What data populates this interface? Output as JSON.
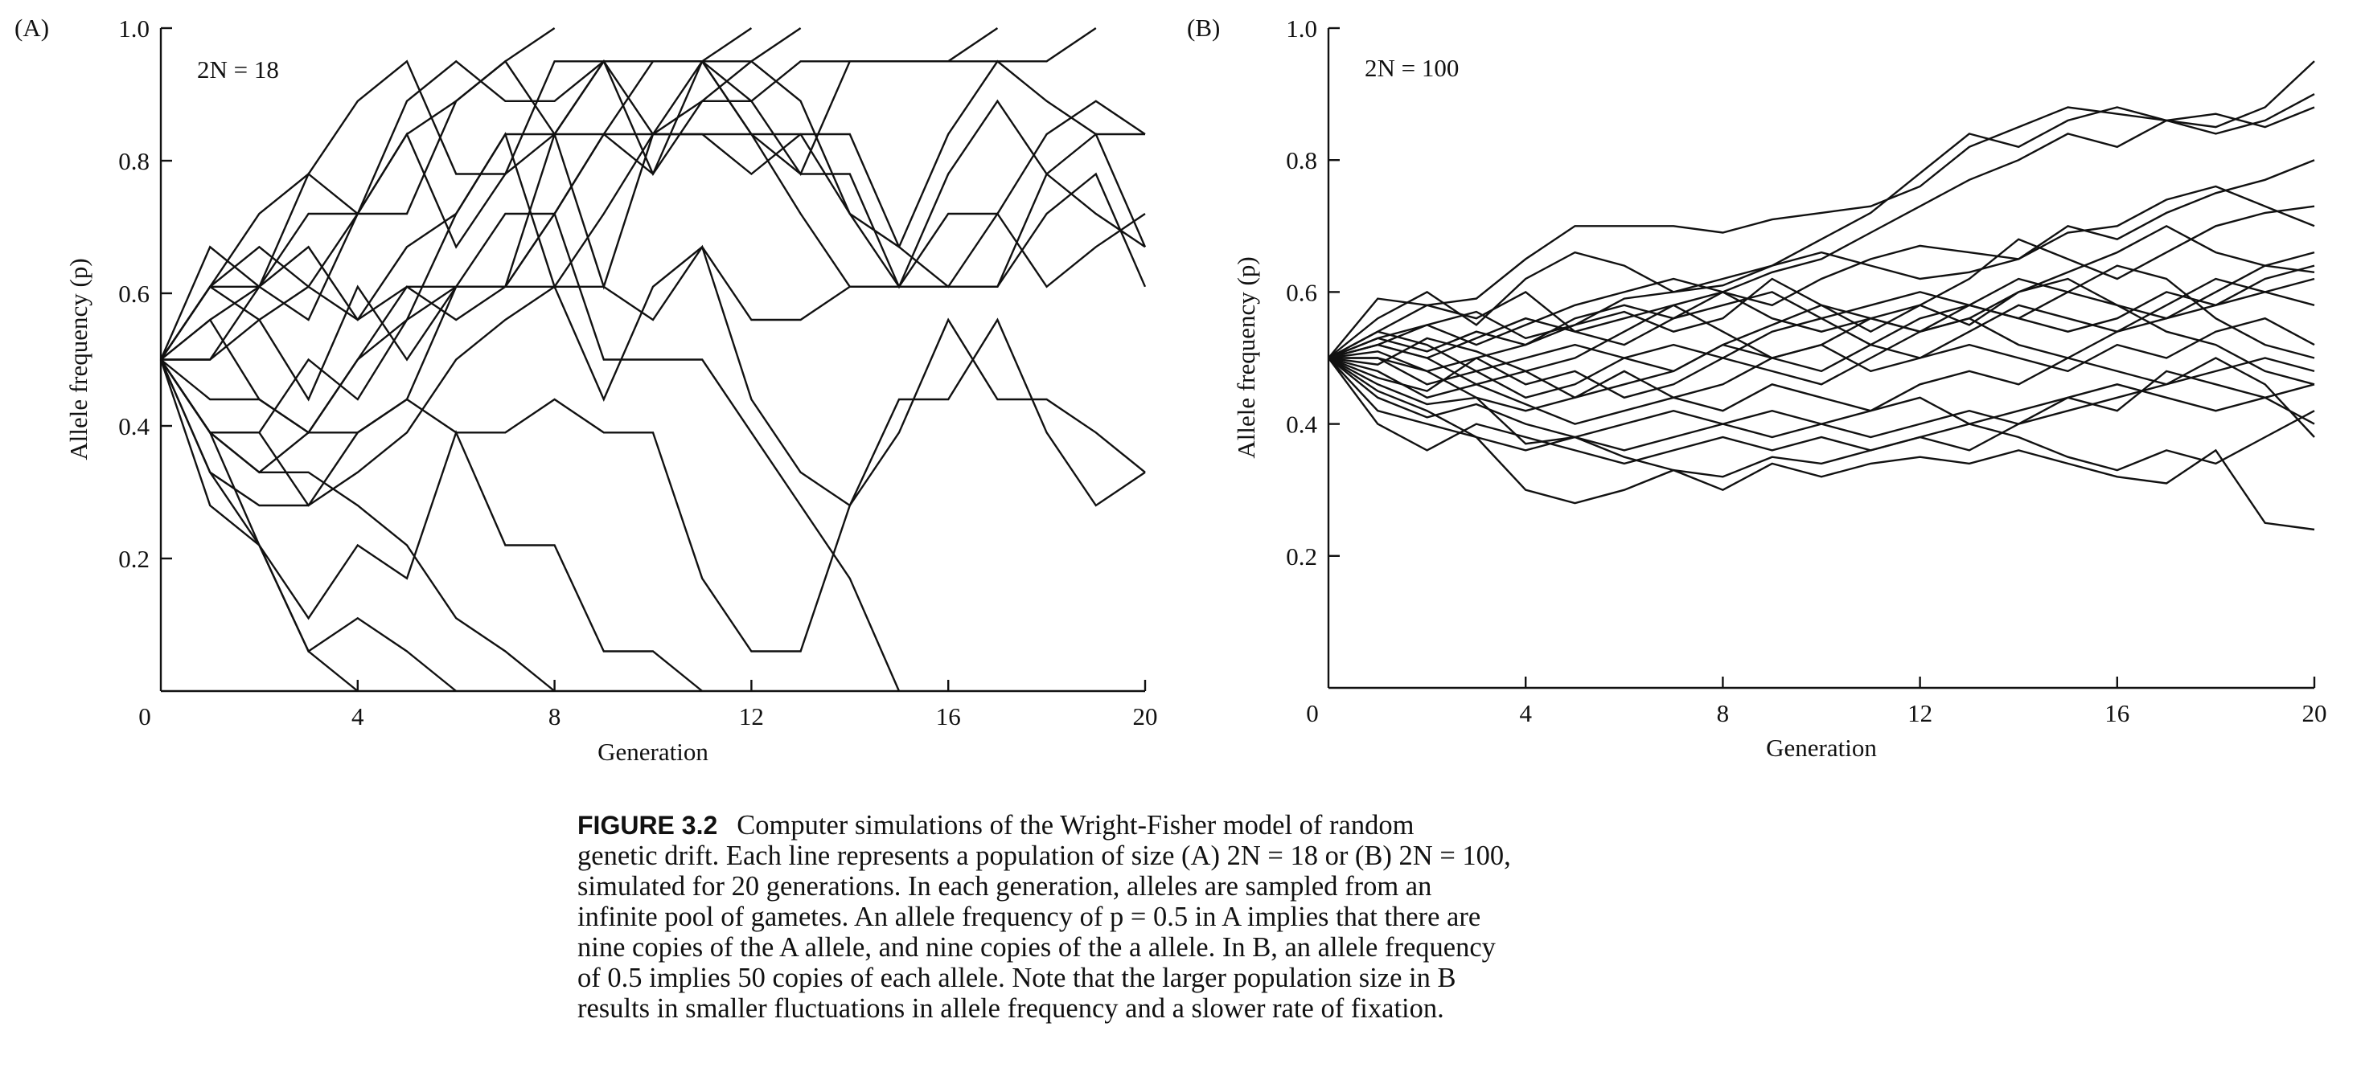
{
  "chart_data": [
    {
      "type": "line",
      "panel_label": "(A)",
      "annotation": "2N = 18",
      "xlabel": "Generation",
      "ylabel": "Allele frequency (p)",
      "xlim": [
        0,
        20
      ],
      "ylim": [
        0,
        1.0
      ],
      "x_ticks": [
        0,
        4,
        8,
        12,
        16,
        20
      ],
      "y_ticks": [
        0.2,
        0.4,
        0.6,
        0.8,
        1.0
      ],
      "x_tick_labels": [
        "0",
        "4",
        "8",
        "12",
        "16",
        "20"
      ],
      "y_tick_labels": [
        "0.2",
        "0.4",
        "0.6",
        "0.8",
        "1.0"
      ],
      "series": [
        {
          "values": [
            0.5,
            0.61,
            0.72,
            0.78,
            0.89,
            0.95,
            0.78,
            0.78,
            0.95,
            0.95,
            0.95,
            0.95,
            0.89,
            0.78,
            0.95,
            0.95,
            0.95,
            0.95,
            0.95,
            1.0
          ]
        },
        {
          "values": [
            0.5,
            0.67,
            0.61,
            0.78,
            0.72,
            0.89,
            0.95,
            0.89,
            0.89,
            0.95,
            0.84,
            0.84,
            0.84,
            0.84,
            0.72,
            0.67,
            0.84,
            0.95,
            0.89,
            0.84,
            0.84
          ]
        },
        {
          "values": [
            0.5,
            0.61,
            0.67,
            0.61,
            0.72,
            0.72,
            0.89,
            0.95,
            0.84,
            0.95,
            0.95,
            0.95,
            0.84,
            0.78,
            0.78,
            0.61,
            0.72,
            0.72,
            0.84,
            0.89,
            0.84
          ]
        },
        {
          "values": [
            0.5,
            0.56,
            0.61,
            0.72,
            0.72,
            0.84,
            0.89,
            0.95,
            1.0
          ]
        },
        {
          "values": [
            0.5,
            0.61,
            0.61,
            0.56,
            0.72,
            0.84,
            0.67,
            0.78,
            0.84,
            0.61,
            0.84,
            0.84,
            0.78,
            0.84,
            0.84,
            0.67,
            0.61,
            0.72,
            0.61,
            0.67,
            0.72
          ]
        },
        {
          "values": [
            0.5,
            0.5,
            0.56,
            0.61,
            0.56,
            0.67,
            0.72,
            0.84,
            0.84,
            0.95,
            0.78,
            0.89,
            0.95,
            0.89,
            0.72,
            0.61,
            0.78,
            0.89,
            0.78,
            0.84,
            0.67
          ]
        },
        {
          "values": [
            0.5,
            0.5,
            0.61,
            0.67,
            0.56,
            0.61,
            0.61,
            0.72,
            0.72,
            0.84,
            0.78,
            0.95,
            1.0
          ]
        },
        {
          "values": [
            0.5,
            0.56,
            0.44,
            0.39,
            0.5,
            0.56,
            0.72,
            0.84,
            0.61,
            0.72,
            0.84,
            0.95,
            0.95,
            1.0
          ]
        },
        {
          "values": [
            0.5,
            0.61,
            0.56,
            0.44,
            0.61,
            0.5,
            0.61,
            0.61,
            0.72,
            0.84,
            0.95,
            0.95,
            0.84,
            0.72,
            0.61,
            0.61,
            0.61,
            0.61,
            0.78,
            0.72,
            0.67
          ]
        },
        {
          "values": [
            0.5,
            0.44,
            0.44,
            0.39,
            0.39,
            0.44,
            0.61,
            0.61,
            0.84,
            0.84,
            0.84,
            0.89,
            0.89,
            0.95,
            0.95,
            0.95,
            0.95,
            1.0
          ]
        },
        {
          "values": [
            0.5,
            0.39,
            0.33,
            0.39,
            0.5,
            0.61,
            0.56,
            0.61,
            0.61,
            0.61,
            0.56,
            0.67,
            0.44,
            0.33,
            0.28,
            0.39,
            0.56,
            0.44,
            0.44,
            0.39,
            0.33
          ]
        },
        {
          "values": [
            0.5,
            0.39,
            0.39,
            0.5,
            0.44,
            0.56,
            0.61,
            0.61,
            0.72,
            0.5,
            0.5,
            0.5,
            0.39,
            0.28,
            0.17,
            0.0
          ]
        },
        {
          "values": [
            0.5,
            0.39,
            0.39,
            0.28,
            0.33,
            0.39,
            0.5,
            0.56,
            0.61,
            0.44,
            0.61,
            0.67,
            0.56,
            0.56,
            0.61,
            0.61,
            0.61,
            0.61,
            0.72,
            0.78,
            0.61
          ]
        },
        {
          "values": [
            0.5,
            0.33,
            0.28,
            0.28,
            0.39,
            0.44,
            0.39,
            0.39,
            0.44,
            0.39,
            0.39,
            0.17,
            0.06,
            0.06,
            0.28,
            0.44,
            0.44,
            0.56,
            0.39,
            0.28,
            0.33
          ]
        },
        {
          "values": [
            0.5,
            0.33,
            0.22,
            0.11,
            0.22,
            0.17,
            0.39,
            0.22,
            0.22,
            0.06,
            0.06,
            0.0
          ]
        },
        {
          "values": [
            0.5,
            0.28,
            0.22,
            0.06,
            0.0
          ]
        },
        {
          "values": [
            0.5,
            0.39,
            0.22,
            0.06,
            0.11,
            0.06,
            0.0
          ]
        },
        {
          "values": [
            0.5,
            0.39,
            0.33,
            0.33,
            0.28,
            0.22,
            0.11,
            0.06,
            0.0
          ]
        }
      ]
    },
    {
      "type": "line",
      "panel_label": "(B)",
      "annotation": "2N = 100",
      "xlabel": "Generation",
      "ylabel": "Allele frequency (p)",
      "xlim": [
        0,
        20
      ],
      "ylim": [
        0,
        1.0
      ],
      "x_ticks": [
        0,
        4,
        8,
        12,
        16,
        20
      ],
      "y_ticks": [
        0.2,
        0.4,
        0.6,
        0.8,
        1.0
      ],
      "x_tick_labels": [
        "0",
        "4",
        "8",
        "12",
        "16",
        "20"
      ],
      "y_tick_labels": [
        "0.2",
        "0.4",
        "0.6",
        "0.8",
        "1.0"
      ],
      "series": [
        {
          "values": [
            0.5,
            0.59,
            0.58,
            0.59,
            0.65,
            0.7,
            0.7,
            0.7,
            0.69,
            0.71,
            0.72,
            0.73,
            0.76,
            0.82,
            0.85,
            0.88,
            0.87,
            0.86,
            0.85,
            0.88,
            0.95
          ]
        },
        {
          "values": [
            0.5,
            0.56,
            0.6,
            0.55,
            0.62,
            0.66,
            0.64,
            0.6,
            0.62,
            0.64,
            0.68,
            0.72,
            0.78,
            0.84,
            0.82,
            0.86,
            0.88,
            0.86,
            0.84,
            0.86,
            0.9
          ]
        },
        {
          "values": [
            0.5,
            0.54,
            0.58,
            0.56,
            0.6,
            0.54,
            0.56,
            0.58,
            0.6,
            0.63,
            0.65,
            0.69,
            0.73,
            0.77,
            0.8,
            0.84,
            0.82,
            0.86,
            0.87,
            0.85,
            0.88
          ]
        },
        {
          "values": [
            0.5,
            0.53,
            0.55,
            0.57,
            0.53,
            0.55,
            0.59,
            0.6,
            0.61,
            0.64,
            0.66,
            0.64,
            0.62,
            0.63,
            0.65,
            0.7,
            0.68,
            0.72,
            0.75,
            0.77,
            0.8
          ]
        },
        {
          "values": [
            0.5,
            0.52,
            0.5,
            0.53,
            0.56,
            0.54,
            0.52,
            0.56,
            0.6,
            0.58,
            0.62,
            0.65,
            0.67,
            0.66,
            0.65,
            0.69,
            0.7,
            0.74,
            0.76,
            0.73,
            0.7
          ]
        },
        {
          "values": [
            0.5,
            0.51,
            0.48,
            0.5,
            0.52,
            0.55,
            0.57,
            0.54,
            0.56,
            0.62,
            0.58,
            0.54,
            0.58,
            0.62,
            0.68,
            0.65,
            0.62,
            0.66,
            0.7,
            0.72,
            0.73
          ]
        },
        {
          "values": [
            0.5,
            0.49,
            0.53,
            0.51,
            0.48,
            0.5,
            0.54,
            0.58,
            0.54,
            0.5,
            0.52,
            0.56,
            0.58,
            0.55,
            0.6,
            0.63,
            0.66,
            0.7,
            0.66,
            0.64,
            0.66
          ]
        },
        {
          "values": [
            0.5,
            0.54,
            0.52,
            0.48,
            0.5,
            0.52,
            0.5,
            0.48,
            0.52,
            0.55,
            0.58,
            0.56,
            0.54,
            0.56,
            0.6,
            0.62,
            0.58,
            0.56,
            0.6,
            0.64,
            0.63
          ]
        },
        {
          "values": [
            0.5,
            0.5,
            0.46,
            0.48,
            0.44,
            0.46,
            0.5,
            0.52,
            0.5,
            0.54,
            0.56,
            0.52,
            0.5,
            0.54,
            0.58,
            0.56,
            0.54,
            0.58,
            0.62,
            0.6,
            0.62
          ]
        },
        {
          "values": [
            0.5,
            0.48,
            0.44,
            0.46,
            0.48,
            0.44,
            0.46,
            0.48,
            0.52,
            0.5,
            0.48,
            0.52,
            0.56,
            0.58,
            0.56,
            0.54,
            0.56,
            0.6,
            0.58,
            0.62,
            0.64
          ]
        },
        {
          "values": [
            0.5,
            0.47,
            0.45,
            0.5,
            0.46,
            0.48,
            0.44,
            0.46,
            0.5,
            0.48,
            0.46,
            0.5,
            0.54,
            0.56,
            0.52,
            0.5,
            0.54,
            0.56,
            0.58,
            0.6,
            0.58
          ]
        },
        {
          "values": [
            0.5,
            0.46,
            0.43,
            0.44,
            0.42,
            0.44,
            0.48,
            0.44,
            0.46,
            0.5,
            0.52,
            0.48,
            0.5,
            0.52,
            0.5,
            0.48,
            0.52,
            0.5,
            0.54,
            0.56,
            0.52
          ]
        },
        {
          "values": [
            0.5,
            0.52,
            0.5,
            0.46,
            0.43,
            0.4,
            0.42,
            0.44,
            0.42,
            0.46,
            0.44,
            0.42,
            0.46,
            0.48,
            0.46,
            0.5,
            0.48,
            0.46,
            0.48,
            0.5,
            0.48
          ]
        },
        {
          "values": [
            0.5,
            0.44,
            0.41,
            0.43,
            0.4,
            0.38,
            0.4,
            0.42,
            0.4,
            0.38,
            0.4,
            0.42,
            0.44,
            0.4,
            0.42,
            0.44,
            0.46,
            0.44,
            0.42,
            0.44,
            0.46
          ]
        },
        {
          "values": [
            0.5,
            0.42,
            0.4,
            0.38,
            0.36,
            0.38,
            0.36,
            0.38,
            0.4,
            0.42,
            0.4,
            0.38,
            0.4,
            0.42,
            0.4,
            0.44,
            0.42,
            0.48,
            0.46,
            0.44,
            0.4
          ]
        },
        {
          "values": [
            0.5,
            0.4,
            0.36,
            0.4,
            0.38,
            0.36,
            0.34,
            0.36,
            0.38,
            0.36,
            0.38,
            0.36,
            0.38,
            0.36,
            0.4,
            0.42,
            0.44,
            0.46,
            0.5,
            0.46,
            0.38
          ]
        },
        {
          "values": [
            0.5,
            0.45,
            0.42,
            0.38,
            0.3,
            0.28,
            0.3,
            0.33,
            0.3,
            0.34,
            0.32,
            0.34,
            0.35,
            0.34,
            0.36,
            0.34,
            0.32,
            0.31,
            0.36,
            0.25,
            0.24
          ]
        },
        {
          "values": [
            0.5,
            0.5,
            0.48,
            0.44,
            0.37,
            0.38,
            0.35,
            0.33,
            0.32,
            0.35,
            0.34,
            0.36,
            0.38,
            0.4,
            0.38,
            0.35,
            0.33,
            0.36,
            0.34,
            0.38,
            0.42
          ]
        },
        {
          "values": [
            0.5,
            0.53,
            0.51,
            0.54,
            0.52,
            0.56,
            0.58,
            0.56,
            0.58,
            0.6,
            0.56,
            0.58,
            0.6,
            0.58,
            0.62,
            0.6,
            0.64,
            0.62,
            0.56,
            0.52,
            0.5
          ]
        },
        {
          "values": [
            0.5,
            0.52,
            0.55,
            0.52,
            0.55,
            0.58,
            0.6,
            0.62,
            0.6,
            0.56,
            0.54,
            0.56,
            0.54,
            0.58,
            0.56,
            0.6,
            0.58,
            0.54,
            0.52,
            0.48,
            0.46
          ]
        }
      ]
    }
  ],
  "caption": {
    "figure_label": "FIGURE 3.2",
    "lines": [
      "Computer simulations of the Wright-Fisher model of random",
      "genetic drift. Each line represents a population of size (A) 2N = 18 or (B) 2N = 100,",
      "simulated for 20 generations. In each generation, alleles are sampled from an",
      "infinite pool of gametes. An allele frequency of p = 0.5 in A implies that there are",
      "nine copies of the A allele, and nine copies of the a allele. In B, an allele frequency",
      "of 0.5 implies 50 copies of each allele. Note that the larger population size in B",
      "results in smaller fluctuations in allele frequency and a slower rate of fixation."
    ]
  }
}
